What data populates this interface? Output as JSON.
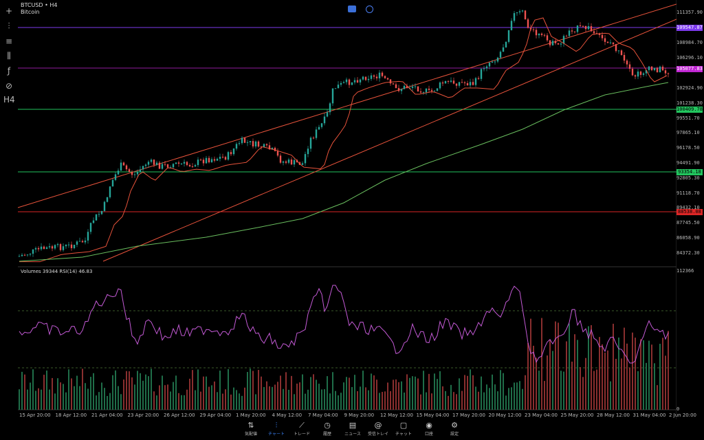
{
  "symbol": {
    "ticker": "BTCUSD • H4",
    "name": "Bitcoin"
  },
  "price_axis": [
    "111357.90",
    "108984.70",
    "106296.10",
    "102924.90",
    "101238.30",
    "99551.70",
    "97865.10",
    "96178.50",
    "94491.90",
    "92805.30",
    "91118.70",
    "89432.10",
    "87745.50",
    "86058.90",
    "84372.30"
  ],
  "price_tags": [
    {
      "value": "109547.87",
      "color": "#7c3aed"
    },
    {
      "value": "105077.83",
      "color": "#c026d3"
    },
    {
      "value": "100409.78",
      "color": "#22c55e"
    },
    {
      "value": "93354.18",
      "color": "#22c55e"
    },
    {
      "value": "88538.08",
      "color": "#dc2626"
    }
  ],
  "indicator": {
    "label": "Volumes 39344 RSI(14) 46.83",
    "volume_max": "112366",
    "volume_min": "0"
  },
  "date_axis": [
    "15 Apr 20:00",
    "18 Apr 12:00",
    "21 Apr 04:00",
    "23 Apr 20:00",
    "26 Apr 12:00",
    "29 Apr 04:00",
    "1 May 20:00",
    "4 May 12:00",
    "7 May 04:00",
    "9 May 20:00",
    "12 May 12:00",
    "15 May 04:00",
    "17 May 20:00",
    "20 May 12:00",
    "23 May 04:00",
    "25 May 20:00",
    "28 May 12:00",
    "31 May 04:00",
    "2 Jun 20:00"
  ],
  "nav": [
    {
      "label": "気配値",
      "icon": "⇅",
      "name": "quotes"
    },
    {
      "label": "チャート",
      "icon": "⫶",
      "name": "chart",
      "active": true
    },
    {
      "label": "トレード",
      "icon": "⟋",
      "name": "trade"
    },
    {
      "label": "履歴",
      "icon": "◷",
      "name": "history"
    },
    {
      "label": "ニュース",
      "icon": "▤",
      "name": "news"
    },
    {
      "label": "受信トレイ",
      "icon": "@",
      "name": "inbox"
    },
    {
      "label": "チャット",
      "icon": "▢",
      "name": "chat"
    },
    {
      "label": "口座",
      "icon": "◉",
      "name": "account"
    },
    {
      "label": "設定",
      "icon": "⚙",
      "name": "settings"
    }
  ],
  "toolbar": [
    {
      "icon": "+",
      "name": "crosshair"
    },
    {
      "icon": "⫶",
      "name": "chart-type"
    },
    {
      "icon": "≡",
      "name": "indicators"
    },
    {
      "icon": "⫼",
      "name": "objects"
    },
    {
      "icon": "ƒ",
      "name": "functions"
    },
    {
      "icon": "⊘",
      "name": "zoom"
    },
    {
      "icon": "H4",
      "name": "timeframe"
    }
  ],
  "colors": {
    "bull": "#26a69a",
    "bear": "#ef5350",
    "ma_red": "#e8533b",
    "ma_green": "#6abf5f",
    "rsi": "#c45ad6"
  }
}
